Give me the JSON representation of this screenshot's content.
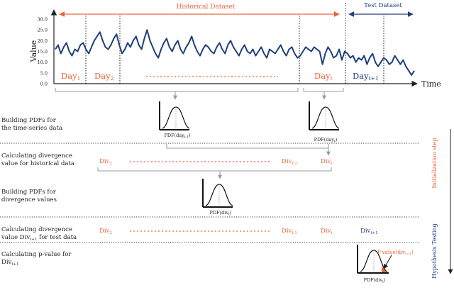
{
  "header": {
    "historical_label": "Historical Dataset",
    "test_label": "Test Dataset"
  },
  "axis": {
    "ylabel": "Value",
    "xlabel": "Time",
    "yticks": [
      "30.0",
      "25.0",
      "20.0",
      "15.0",
      "10.0",
      "5.0",
      "0.0"
    ],
    "ylim": [
      0,
      30
    ]
  },
  "days": {
    "day1": "Day",
    "day1_sub": "1",
    "day2": "Day",
    "day2_sub": "2",
    "dayt": "Day",
    "dayt_sub": "t",
    "dayt1": "Day",
    "dayt1_sub": "t+1"
  },
  "steps": {
    "step1_line1": "Building PDFs for",
    "step1_line2": "the time-series data",
    "step2_line1": "Calculating divergence",
    "step2_line2": "value for historical data",
    "step3_line1": "Building PDFs for",
    "step3_line2": "divergence values",
    "step4_line1": "Calculating divergence",
    "step4_line2a": "value Div",
    "step4_line2_sub": "t+1",
    "step4_line2b": " for test data",
    "step5_line1": "Calculating p-value for",
    "step5_line2": "Div",
    "step5_line2_sub": "t+1"
  },
  "pdfs": {
    "pdf_dayt1_label": "PDF(day",
    "pdf_dayt1_sub": "t-1",
    "pdf_dayt_label": "PDF(day",
    "pdf_dayt_sub": "t",
    "pdf_divt_label": "PDF(div",
    "pdf_divt_sub": "t",
    "pdf_divt_test_label": "PDF(div",
    "pdf_divt_test_sub": "t",
    "pvalue_label": "P-value(div",
    "pvalue_sub": "t+1"
  },
  "divs": {
    "div2": "Div",
    "div2_sub": "2",
    "divt1": "Div",
    "divt1_sub": "t-1",
    "divt": "Div",
    "divt_sub": "t",
    "div2b": "Div",
    "div2b_sub": "2",
    "divt1b": "Div",
    "divt1b_sub": "t-1",
    "divtb": "Div",
    "divtb_sub": "t",
    "divnext": "Div",
    "divnext_sub": "t+1"
  },
  "side": {
    "init_label": "Initialization step",
    "hyp_label": "Hypothesis Testing"
  },
  "series": {
    "values": [
      16,
      18,
      14,
      17,
      19,
      15,
      13,
      16,
      15,
      18,
      19,
      16,
      14,
      17,
      20,
      22,
      24,
      20,
      17,
      16,
      18,
      21,
      23,
      18,
      14,
      16,
      19,
      17,
      20,
      22,
      18,
      16,
      21,
      25,
      20,
      17,
      14,
      12,
      16,
      19,
      21,
      17,
      15,
      18,
      20,
      16,
      14,
      17,
      19,
      22,
      18,
      15,
      13,
      16,
      18,
      17,
      15,
      14,
      17,
      19,
      16,
      14,
      18,
      20,
      17,
      15,
      13,
      16,
      18,
      15,
      14,
      16,
      13,
      15,
      17,
      14,
      12,
      16,
      15,
      14,
      16,
      18,
      15,
      13,
      16,
      17,
      14,
      12,
      13,
      15,
      17,
      16,
      15,
      17,
      16,
      15,
      9,
      14,
      17,
      15,
      12,
      13,
      16,
      11,
      15,
      14,
      12,
      13,
      10,
      12,
      11,
      13,
      9,
      12,
      14,
      10,
      8,
      10,
      12,
      11,
      9,
      10,
      13,
      11,
      9,
      11,
      8,
      6,
      4,
      6
    ],
    "color": "#1f3f7a"
  },
  "colors": {
    "orange": "#e8643a",
    "navy": "#1f3f7a"
  }
}
